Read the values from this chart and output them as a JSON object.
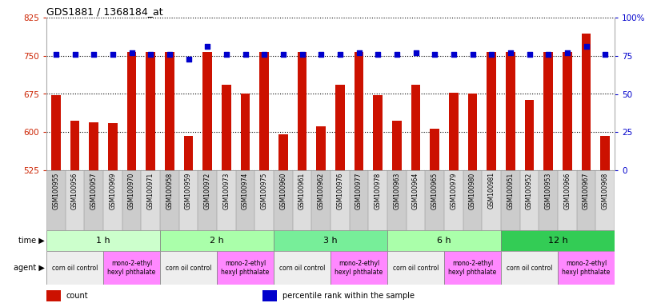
{
  "title": "GDS1881 / 1368184_at",
  "samples": [
    "GSM100955",
    "GSM100956",
    "GSM100957",
    "GSM100969",
    "GSM100970",
    "GSM100971",
    "GSM100958",
    "GSM100959",
    "GSM100972",
    "GSM100973",
    "GSM100974",
    "GSM100975",
    "GSM100960",
    "GSM100961",
    "GSM100962",
    "GSM100976",
    "GSM100977",
    "GSM100978",
    "GSM100963",
    "GSM100964",
    "GSM100965",
    "GSM100979",
    "GSM100980",
    "GSM100981",
    "GSM100951",
    "GSM100952",
    "GSM100953",
    "GSM100966",
    "GSM100967",
    "GSM100968"
  ],
  "counts": [
    672,
    622,
    620,
    618,
    757,
    757,
    757,
    593,
    757,
    693,
    675,
    757,
    596,
    757,
    611,
    693,
    757,
    672,
    623,
    693,
    607,
    678,
    676,
    757,
    757,
    663,
    757,
    757,
    793,
    592
  ],
  "percentiles": [
    76,
    76,
    76,
    76,
    77,
    76,
    76,
    73,
    81,
    76,
    76,
    76,
    76,
    76,
    76,
    76,
    77,
    76,
    76,
    77,
    76,
    76,
    76,
    76,
    77,
    76,
    76,
    77,
    81,
    76
  ],
  "ylim_left": [
    525,
    825
  ],
  "ylim_right": [
    0,
    100
  ],
  "yticks_left": [
    525,
    600,
    675,
    750,
    825
  ],
  "yticks_right": [
    0,
    25,
    50,
    75,
    100
  ],
  "bar_color": "#cc1100",
  "marker_color": "#0000cc",
  "time_groups": [
    {
      "label": "1 h",
      "start": 0,
      "end": 6,
      "color": "#ccffcc"
    },
    {
      "label": "2 h",
      "start": 6,
      "end": 12,
      "color": "#aaffaa"
    },
    {
      "label": "3 h",
      "start": 12,
      "end": 18,
      "color": "#77ee99"
    },
    {
      "label": "6 h",
      "start": 18,
      "end": 24,
      "color": "#aaffaa"
    },
    {
      "label": "12 h",
      "start": 24,
      "end": 30,
      "color": "#33cc55"
    }
  ],
  "agent_groups": [
    {
      "label": "corn oil control",
      "start": 0,
      "end": 3,
      "color": "#eeeeee"
    },
    {
      "label": "mono-2-ethyl\nhexyl phthalate",
      "start": 3,
      "end": 6,
      "color": "#ff88ff"
    },
    {
      "label": "corn oil control",
      "start": 6,
      "end": 9,
      "color": "#eeeeee"
    },
    {
      "label": "mono-2-ethyl\nhexyl phthalate",
      "start": 9,
      "end": 12,
      "color": "#ff88ff"
    },
    {
      "label": "corn oil control",
      "start": 12,
      "end": 15,
      "color": "#eeeeee"
    },
    {
      "label": "mono-2-ethyl\nhexyl phthalate",
      "start": 15,
      "end": 18,
      "color": "#ff88ff"
    },
    {
      "label": "corn oil control",
      "start": 18,
      "end": 21,
      "color": "#eeeeee"
    },
    {
      "label": "mono-2-ethyl\nhexyl phthalate",
      "start": 21,
      "end": 24,
      "color": "#ff88ff"
    },
    {
      "label": "corn oil control",
      "start": 24,
      "end": 27,
      "color": "#eeeeee"
    },
    {
      "label": "mono-2-ethyl\nhexyl phthalate",
      "start": 27,
      "end": 30,
      "color": "#ff88ff"
    }
  ],
  "background_color": "#ffffff",
  "left_label_color": "#cc2200",
  "right_label_color": "#0000cc",
  "sample_bg_color": "#cccccc"
}
